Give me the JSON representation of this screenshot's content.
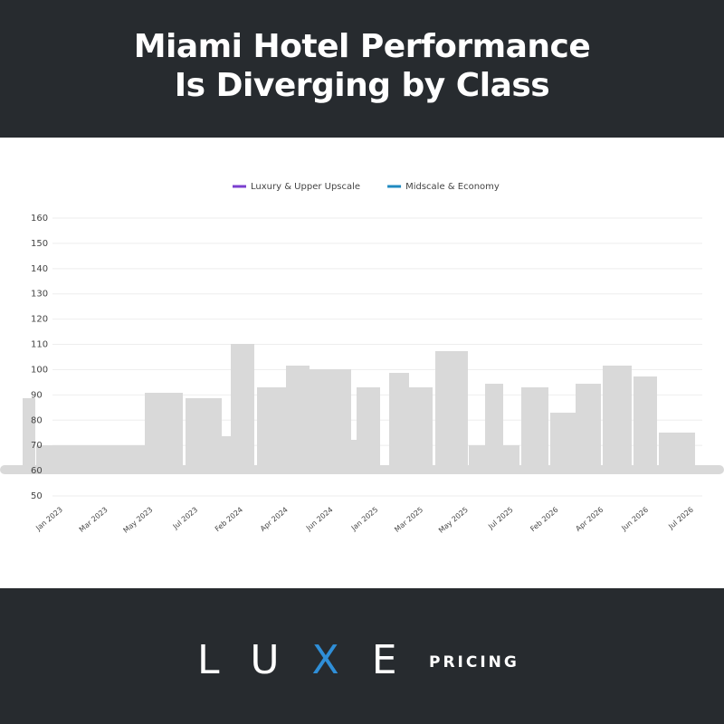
{
  "chart_data": {
    "type": "line",
    "title": "Miami Hotel Performance\nIs Diverging by Class",
    "categories": [
      "Jan 2023",
      "Mar 2023",
      "May 2023",
      "Jul 2023",
      "Feb 2024",
      "Apr 2024",
      "Jun 2024",
      "Jan 2025",
      "Mar 2025",
      "May 2025",
      "Jul 2025",
      "Feb 2026",
      "Apr 2026",
      "Jun 2026",
      "Jul 2026"
    ],
    "series": [
      {
        "name": "Luxury & Upper Upscale",
        "color": "#7b3fcf",
        "values": [
          null,
          null,
          null,
          null,
          null,
          null,
          null,
          null,
          null,
          null,
          null,
          null,
          null,
          null,
          null
        ]
      },
      {
        "name": "Midscale & Economy",
        "color": "#1f8ac0",
        "values": [
          null,
          null,
          null,
          null,
          null,
          null,
          null,
          null,
          null,
          null,
          null,
          null,
          null,
          null,
          null
        ]
      }
    ],
    "ylim": [
      50,
      160
    ],
    "yticks": [
      50,
      60,
      70,
      80,
      90,
      100,
      110,
      120,
      130,
      140,
      150,
      160
    ],
    "grid": true
  },
  "footer": {
    "brand_letters": [
      "L",
      "U",
      "X",
      "E"
    ],
    "brand_sub": "PRICING"
  }
}
